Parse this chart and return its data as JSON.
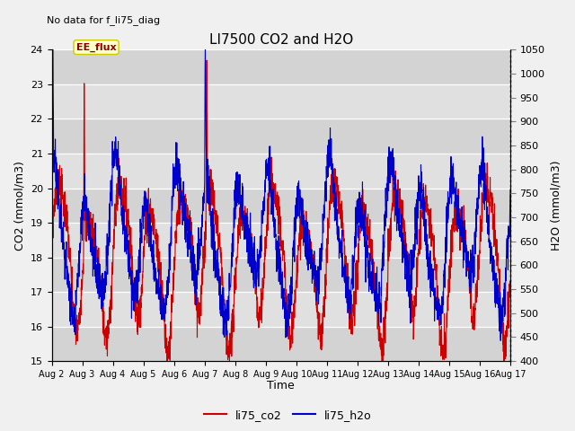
{
  "title": "LI7500 CO2 and H2O",
  "watermark": "No data for f_li75_diag",
  "xlabel": "Time",
  "ylabel_left": "CO2 (mmol/m3)",
  "ylabel_right": "H2O (mmol/m3)",
  "ylim_left": [
    15.0,
    24.0
  ],
  "ylim_right": [
    400,
    1050
  ],
  "legend_labels": [
    "li75_co2",
    "li75_h2o"
  ],
  "legend_colors": [
    "#cc0000",
    "#0000cc"
  ],
  "annotation_text": "EE_flux",
  "bg_color": "#f0f0f0",
  "plot_bg_color": "#e0e0e0",
  "grid_color": "white",
  "x_tick_labels": [
    "Aug 2",
    "Aug 3",
    "Aug 4",
    "Aug 5",
    "Aug 6",
    "Aug 7",
    "Aug 8",
    "Aug 9",
    "Aug 10",
    "Aug 11",
    "Aug 12",
    "Aug 13",
    "Aug 14",
    "Aug 15",
    "Aug 16",
    "Aug 17"
  ],
  "n_days": 15,
  "pts_per_day": 144,
  "line_width": 0.8,
  "figsize": [
    6.4,
    4.8
  ],
  "dpi": 100
}
